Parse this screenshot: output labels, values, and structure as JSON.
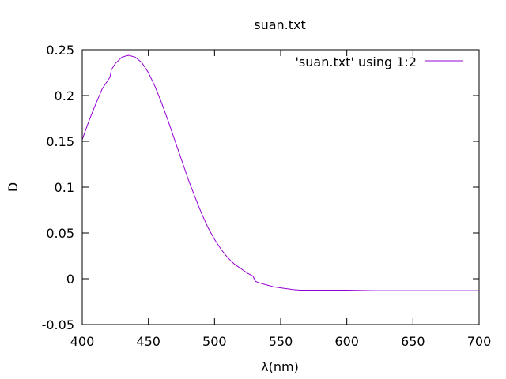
{
  "chart_data": {
    "type": "line",
    "title": "suan.txt",
    "xlabel": "λ(nm)",
    "ylabel": "D",
    "xlim": [
      400,
      700
    ],
    "ylim": [
      -0.05,
      0.25
    ],
    "xticks": [
      400,
      450,
      500,
      550,
      600,
      650,
      700
    ],
    "xtick_labels": [
      "400",
      "450",
      "500",
      "550",
      "600",
      "650",
      "700"
    ],
    "yticks": [
      -0.05,
      0,
      0.05,
      0.1,
      0.15,
      0.2,
      0.25
    ],
    "ytick_labels": [
      "-0.05",
      "0",
      "0.05",
      "0.1",
      "0.15",
      "0.2",
      "0.25"
    ],
    "grid": false,
    "legend_position": "top-right",
    "series": [
      {
        "name": "'suan.txt' using 1:2",
        "color": "#9400d3",
        "x": [
          400,
          405,
          410,
          415,
          420,
          421,
          422,
          425,
          430,
          435,
          440,
          445,
          450,
          455,
          460,
          465,
          470,
          475,
          480,
          485,
          490,
          495,
          500,
          505,
          510,
          515,
          520,
          525,
          529,
          530,
          531,
          535,
          540,
          545,
          550,
          555,
          560,
          565,
          570,
          580,
          590,
          600,
          620,
          640,
          660,
          680,
          700
        ],
        "y": [
          0.152,
          0.172,
          0.19,
          0.207,
          0.218,
          0.22,
          0.228,
          0.235,
          0.242,
          0.244,
          0.242,
          0.236,
          0.225,
          0.21,
          0.192,
          0.172,
          0.151,
          0.13,
          0.109,
          0.09,
          0.072,
          0.056,
          0.043,
          0.032,
          0.023,
          0.016,
          0.011,
          0.006,
          0.003,
          0.0,
          -0.003,
          -0.005,
          -0.007,
          -0.009,
          -0.01,
          -0.011,
          -0.012,
          -0.0125,
          -0.0125,
          -0.0125,
          -0.0125,
          -0.0125,
          -0.013,
          -0.013,
          -0.013,
          -0.013,
          -0.013
        ]
      }
    ]
  }
}
